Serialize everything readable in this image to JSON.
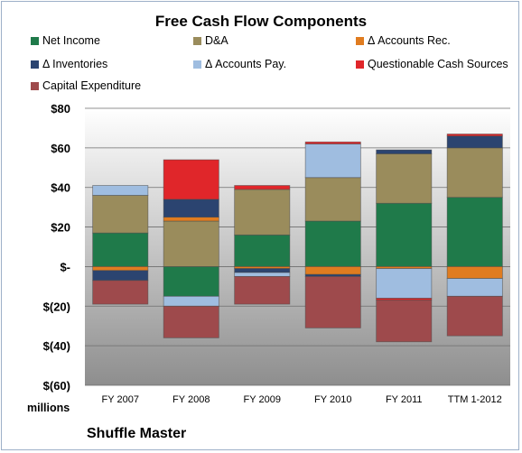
{
  "chart_data": {
    "type": "bar",
    "stacked": true,
    "title": "Free Cash Flow Components",
    "categories": [
      "FY 2007",
      "FY 2008",
      "FY 2009",
      "FY 2010",
      "FY 2011",
      "TTM 1-2012"
    ],
    "ylim": [
      -60,
      80
    ],
    "yticks": [
      80,
      60,
      40,
      20,
      0,
      -20,
      -40,
      -60
    ],
    "ytick_labels": [
      "$80",
      "$60",
      "$40",
      "$20",
      "$-",
      "$(20)",
      "$(40)",
      "$(60)"
    ],
    "units_label": "millions",
    "grid": true,
    "legend_position": "top",
    "series": [
      {
        "name": "Net Income",
        "color": "#1f7a4a",
        "values": [
          17,
          -15,
          16,
          23,
          32,
          35
        ]
      },
      {
        "name": "D&A",
        "color": "#9a8c5c",
        "values": [
          19,
          23,
          23,
          22,
          25,
          25
        ]
      },
      {
        "name": "Δ Accounts Rec.",
        "color": "#e07c20",
        "values": [
          -2,
          2,
          -1,
          -4,
          -1,
          -6
        ]
      },
      {
        "name": "Δ Inventories",
        "color": "#2b4470",
        "values": [
          -5,
          9,
          -2,
          -1,
          2,
          6
        ]
      },
      {
        "name": "Δ Accounts Pay.",
        "color": "#9fbde0",
        "values": [
          5,
          -5,
          -2,
          17,
          -15,
          -9
        ]
      },
      {
        "name": "Questionable Cash Sources",
        "color": "#e0262a",
        "values": [
          0,
          20,
          2,
          1,
          -1,
          1
        ]
      },
      {
        "name": "Capital Expenditure",
        "color": "#9e4a4c",
        "values": [
          -12,
          -16,
          -14,
          -26,
          -21,
          -20
        ]
      }
    ]
  },
  "footer": {
    "company": "Shuffle Master"
  }
}
